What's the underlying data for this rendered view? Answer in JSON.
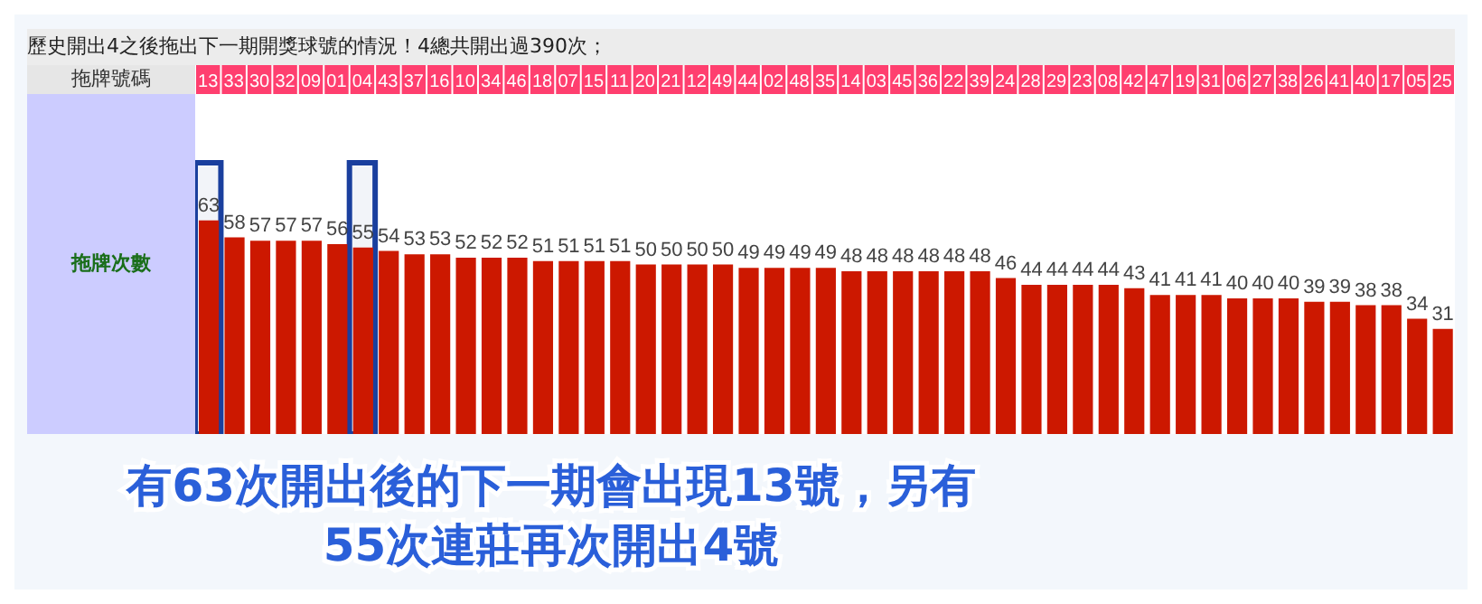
{
  "chart_data": {
    "type": "bar",
    "title": "歷史開出4之後拖出下一期開獎球號的情況！4總共開出過390次；",
    "xlabel": "拖牌號碼",
    "ylabel": "拖牌次數",
    "categories": [
      "13",
      "33",
      "30",
      "32",
      "09",
      "01",
      "04",
      "43",
      "37",
      "16",
      "10",
      "34",
      "46",
      "18",
      "07",
      "15",
      "11",
      "20",
      "21",
      "12",
      "49",
      "44",
      "02",
      "48",
      "35",
      "14",
      "03",
      "45",
      "36",
      "22",
      "39",
      "24",
      "28",
      "29",
      "23",
      "08",
      "42",
      "47",
      "19",
      "31",
      "06",
      "27",
      "38",
      "26",
      "41",
      "40",
      "17",
      "05",
      "25"
    ],
    "values": [
      63,
      58,
      57,
      57,
      57,
      56,
      55,
      54,
      53,
      53,
      52,
      52,
      52,
      51,
      51,
      51,
      51,
      50,
      50,
      50,
      50,
      49,
      49,
      49,
      49,
      48,
      48,
      48,
      48,
      48,
      48,
      46,
      44,
      44,
      44,
      44,
      43,
      41,
      41,
      41,
      40,
      40,
      40,
      39,
      39,
      38,
      38,
      34,
      31
    ],
    "color": "#cc1800",
    "data_labels": true,
    "grid": false,
    "legend": false,
    "bands": [
      {
        "axis": "x",
        "from": "13",
        "to": "13",
        "color": "#1a3f9e"
      },
      {
        "axis": "x",
        "from": "04",
        "to": "04",
        "color": "#1a3f9e"
      }
    ],
    "annotations": [
      "有63次開出後的下一期會出現13號，另有55次連莊再次開出4號"
    ]
  }
}
